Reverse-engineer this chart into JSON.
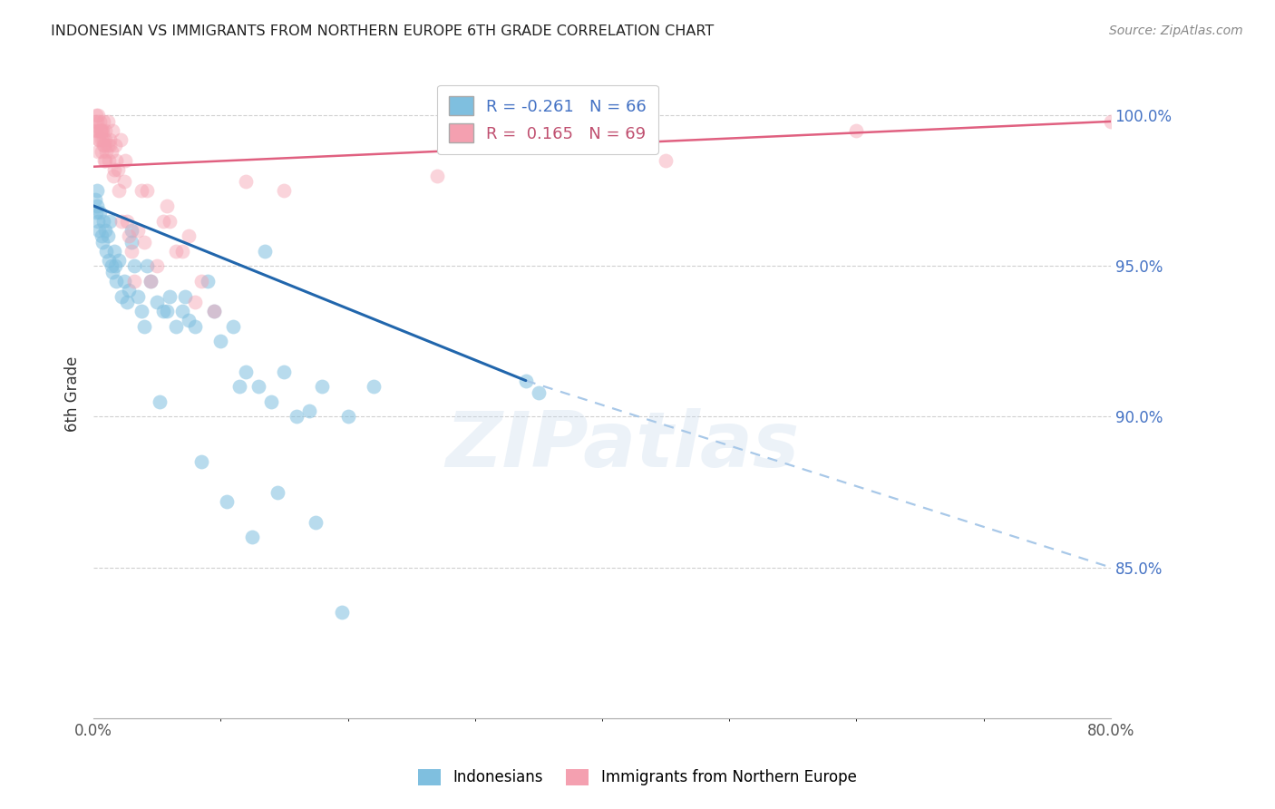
{
  "title": "INDONESIAN VS IMMIGRANTS FROM NORTHERN EUROPE 6TH GRADE CORRELATION CHART",
  "source": "Source: ZipAtlas.com",
  "ylabel": "6th Grade",
  "xlim": [
    0.0,
    80.0
  ],
  "ylim": [
    80.0,
    101.5
  ],
  "yticks_right": [
    100.0,
    95.0,
    90.0,
    85.0
  ],
  "blue_color": "#7fbfdf",
  "pink_color": "#f4a0b0",
  "blue_line_color": "#2166ac",
  "blue_dash_color": "#a8c8e8",
  "pink_line_color": "#e06080",
  "background_color": "#ffffff",
  "grid_color": "#d0d0d0",
  "watermark": "ZIPatlas",
  "blue_R": -0.261,
  "blue_N": 66,
  "pink_R": 0.165,
  "pink_N": 69,
  "blue_line_x0": 0.0,
  "blue_line_y0": 97.0,
  "blue_line_x1": 34.0,
  "blue_line_y1": 91.2,
  "blue_dash_x0": 34.0,
  "blue_dash_y0": 91.2,
  "blue_dash_x1": 80.0,
  "blue_dash_y1": 85.0,
  "pink_line_x0": 0.0,
  "pink_line_y0": 98.3,
  "pink_line_x1": 80.0,
  "pink_line_y1": 99.8,
  "blue_x": [
    0.15,
    0.2,
    0.25,
    0.3,
    0.35,
    0.4,
    0.5,
    0.6,
    0.7,
    0.8,
    0.9,
    1.0,
    1.1,
    1.2,
    1.3,
    1.4,
    1.5,
    1.6,
    1.7,
    1.8,
    2.0,
    2.2,
    2.4,
    2.6,
    2.8,
    3.0,
    3.2,
    3.5,
    3.8,
    4.0,
    4.5,
    5.0,
    5.5,
    6.0,
    6.5,
    7.0,
    7.5,
    8.0,
    9.0,
    10.0,
    11.0,
    12.0,
    13.0,
    14.0,
    15.0,
    16.0,
    17.0,
    18.0,
    20.0,
    22.0,
    13.5,
    3.0,
    4.2,
    5.8,
    7.2,
    9.5,
    11.5,
    14.5,
    17.5,
    19.5,
    34.0,
    35.0,
    10.5,
    12.5,
    8.5,
    5.2
  ],
  "blue_y": [
    97.2,
    96.8,
    97.5,
    97.0,
    96.5,
    96.2,
    96.8,
    96.0,
    95.8,
    96.5,
    96.2,
    95.5,
    96.0,
    95.2,
    96.5,
    95.0,
    94.8,
    95.5,
    95.0,
    94.5,
    95.2,
    94.0,
    94.5,
    93.8,
    94.2,
    95.8,
    95.0,
    94.0,
    93.5,
    93.0,
    94.5,
    93.8,
    93.5,
    94.0,
    93.0,
    93.5,
    93.2,
    93.0,
    94.5,
    92.5,
    93.0,
    91.5,
    91.0,
    90.5,
    91.5,
    90.0,
    90.2,
    91.0,
    90.0,
    91.0,
    95.5,
    96.2,
    95.0,
    93.5,
    94.0,
    93.5,
    91.0,
    87.5,
    86.5,
    83.5,
    91.2,
    90.8,
    87.2,
    86.0,
    88.5,
    90.5
  ],
  "pink_x": [
    0.1,
    0.15,
    0.2,
    0.25,
    0.3,
    0.35,
    0.4,
    0.45,
    0.5,
    0.55,
    0.6,
    0.65,
    0.7,
    0.75,
    0.8,
    0.85,
    0.9,
    0.95,
    1.0,
    1.1,
    1.2,
    1.3,
    1.4,
    1.5,
    1.6,
    1.7,
    1.8,
    1.9,
    2.0,
    2.2,
    2.4,
    2.6,
    2.8,
    3.0,
    3.5,
    4.0,
    4.5,
    5.0,
    6.0,
    7.0,
    8.0,
    3.2,
    1.25,
    0.55,
    0.45,
    0.35,
    0.65,
    0.75,
    0.9,
    2.1,
    1.15,
    1.55,
    4.2,
    12.0,
    34.0,
    60.0,
    80.0,
    45.0,
    27.0,
    8.5,
    5.5,
    6.5,
    9.5,
    15.0,
    7.5,
    5.8,
    3.8,
    2.5,
    0.85
  ],
  "pink_y": [
    99.5,
    99.8,
    100.0,
    99.5,
    99.8,
    100.0,
    99.5,
    99.2,
    99.8,
    99.5,
    99.2,
    98.8,
    99.5,
    99.2,
    99.8,
    98.5,
    99.2,
    99.5,
    98.8,
    99.0,
    98.5,
    99.2,
    98.8,
    99.5,
    98.2,
    99.0,
    98.5,
    98.2,
    97.5,
    96.5,
    97.8,
    96.5,
    96.0,
    95.5,
    96.2,
    95.8,
    94.5,
    95.0,
    96.5,
    95.5,
    93.8,
    94.5,
    99.0,
    99.5,
    99.2,
    98.8,
    99.5,
    99.0,
    98.5,
    99.2,
    99.8,
    98.0,
    97.5,
    97.8,
    99.2,
    99.5,
    99.8,
    98.5,
    98.0,
    94.5,
    96.5,
    95.5,
    93.5,
    97.5,
    96.0,
    97.0,
    97.5,
    98.5,
    99.0
  ]
}
